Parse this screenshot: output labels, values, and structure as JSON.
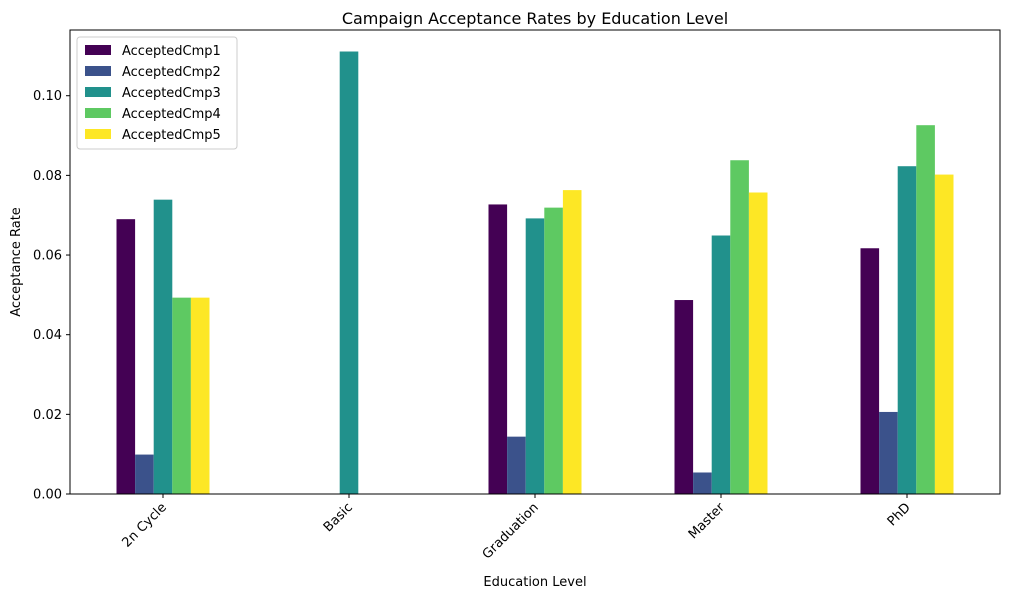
{
  "chart_data": {
    "type": "bar",
    "title": "Campaign Acceptance Rates by Education Level",
    "xlabel": "Education Level",
    "ylabel": "Acceptance Rate",
    "categories": [
      "2n Cycle",
      "Basic",
      "Graduation",
      "Master",
      "PhD"
    ],
    "ylim": [
      0,
      0.1165
    ],
    "yticks": [
      0.0,
      0.02,
      0.04,
      0.06,
      0.08,
      0.1
    ],
    "ytick_labels": [
      "0.00",
      "0.02",
      "0.04",
      "0.06",
      "0.08",
      "0.10"
    ],
    "grid": false,
    "legend_position": "top-left",
    "series": [
      {
        "name": "AcceptedCmp1",
        "color": "#440154",
        "values": [
          0.069,
          0.0,
          0.0727,
          0.0487,
          0.0617
        ]
      },
      {
        "name": "AcceptedCmp2",
        "color": "#3b528b",
        "values": [
          0.0099,
          0.0,
          0.0144,
          0.0054,
          0.0206
        ]
      },
      {
        "name": "AcceptedCmp3",
        "color": "#21918c",
        "values": [
          0.0739,
          0.1111,
          0.0692,
          0.0649,
          0.0823
        ]
      },
      {
        "name": "AcceptedCmp4",
        "color": "#5ec962",
        "values": [
          0.0493,
          0.0,
          0.0719,
          0.0838,
          0.0926
        ]
      },
      {
        "name": "AcceptedCmp5",
        "color": "#fde725",
        "values": [
          0.0493,
          0.0,
          0.0763,
          0.0757,
          0.0802
        ]
      }
    ]
  }
}
